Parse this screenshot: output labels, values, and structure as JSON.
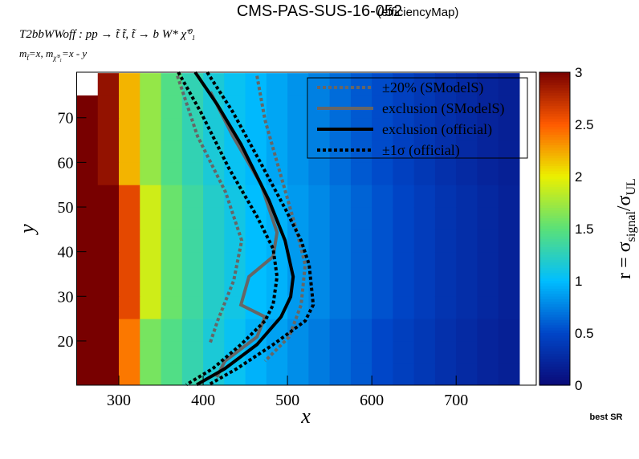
{
  "chart_data": {
    "type": "heatmap",
    "title": "CMS-PAS-SUS-16-052",
    "subtitle": "(efficiencyMap)",
    "process": "T2bbWWoff : pp  → t̃ t̃, t̃  → b W* χ̃⁰₁",
    "masses": [
      "m",
      "t̃",
      "=x, m",
      "χ̃⁰₁",
      "=x - y"
    ],
    "xlabel": "x",
    "ylabel": "y",
    "zlabel": [
      "r = σ",
      "signal",
      "/σ",
      "UL"
    ],
    "footnote": "best SR",
    "xlim": [
      250,
      795
    ],
    "ylim": [
      10.1,
      80.2
    ],
    "zlim": [
      0,
      3
    ],
    "xticks": [
      300,
      400,
      500,
      600,
      700
    ],
    "yticks": [
      20,
      30,
      40,
      50,
      60,
      70
    ],
    "zticks": [
      0,
      0.5,
      1,
      1.5,
      2,
      2.5,
      3
    ],
    "x_bins": [
      250,
      275,
      300,
      325,
      350,
      375,
      400,
      425,
      450,
      475,
      500,
      525,
      550,
      575,
      600,
      625,
      650,
      675,
      700,
      725,
      750,
      775
    ],
    "y_bins": [
      10,
      15,
      20,
      25,
      30,
      35,
      40,
      45,
      50,
      55,
      60,
      65,
      70,
      75,
      80
    ],
    "z": [
      [
        3.5,
        3.3,
        2.4,
        1.6,
        1.45,
        1.3,
        1.15,
        1.05,
        0.95,
        0.88,
        0.8,
        0.72,
        0.65,
        0.58,
        0.5,
        0.44,
        0.38,
        0.32,
        0.27,
        0.22,
        0.18
      ],
      [
        3.5,
        3.3,
        2.4,
        1.6,
        1.45,
        1.3,
        1.15,
        1.05,
        0.95,
        0.88,
        0.8,
        0.72,
        0.65,
        0.58,
        0.5,
        0.44,
        0.38,
        0.32,
        0.27,
        0.22,
        0.18
      ],
      [
        3.5,
        3.3,
        2.4,
        1.6,
        1.45,
        1.3,
        1.15,
        1.05,
        0.95,
        0.88,
        0.8,
        0.72,
        0.65,
        0.58,
        0.5,
        0.44,
        0.38,
        0.32,
        0.27,
        0.22,
        0.18
      ],
      [
        3.5,
        3.3,
        2.6,
        1.9,
        1.55,
        1.35,
        1.2,
        1.1,
        1.0,
        0.95,
        0.85,
        0.78,
        0.7,
        0.62,
        0.55,
        0.48,
        0.42,
        0.35,
        0.3,
        0.25,
        0.2
      ],
      [
        3.5,
        3.3,
        2.6,
        1.9,
        1.55,
        1.35,
        1.2,
        1.1,
        1.0,
        0.95,
        0.85,
        0.78,
        0.7,
        0.62,
        0.55,
        0.48,
        0.42,
        0.35,
        0.3,
        0.25,
        0.2
      ],
      [
        3.5,
        3.3,
        2.6,
        1.9,
        1.55,
        1.35,
        1.2,
        1.1,
        1.0,
        0.95,
        0.85,
        0.78,
        0.7,
        0.62,
        0.55,
        0.48,
        0.42,
        0.35,
        0.3,
        0.25,
        0.2
      ],
      [
        3.5,
        3.3,
        2.6,
        1.9,
        1.55,
        1.35,
        1.2,
        1.1,
        1.0,
        0.95,
        0.85,
        0.78,
        0.7,
        0.62,
        0.55,
        0.48,
        0.42,
        0.35,
        0.3,
        0.25,
        0.2
      ],
      [
        3.5,
        3.3,
        2.6,
        1.9,
        1.55,
        1.35,
        1.2,
        1.1,
        1.0,
        0.95,
        0.85,
        0.78,
        0.7,
        0.62,
        0.55,
        0.48,
        0.42,
        0.35,
        0.3,
        0.25,
        0.2
      ],
      [
        3.5,
        3.3,
        2.6,
        1.9,
        1.55,
        1.35,
        1.2,
        1.1,
        1.0,
        0.95,
        0.85,
        0.78,
        0.7,
        0.62,
        0.55,
        0.48,
        0.42,
        0.35,
        0.3,
        0.25,
        0.2
      ],
      [
        3.4,
        2.9,
        2.2,
        1.7,
        1.45,
        1.28,
        1.15,
        1.05,
        0.98,
        0.9,
        0.82,
        0.74,
        0.66,
        0.58,
        0.52,
        0.45,
        0.38,
        0.32,
        0.27,
        0.22,
        0.18
      ],
      [
        3.4,
        2.9,
        2.2,
        1.7,
        1.45,
        1.28,
        1.15,
        1.05,
        0.98,
        0.9,
        0.82,
        0.74,
        0.66,
        0.58,
        0.52,
        0.45,
        0.38,
        0.32,
        0.27,
        0.22,
        0.18
      ],
      [
        3.4,
        2.9,
        2.2,
        1.7,
        1.45,
        1.28,
        1.15,
        1.05,
        0.98,
        0.9,
        0.82,
        0.74,
        0.66,
        0.58,
        0.52,
        0.45,
        0.38,
        0.32,
        0.27,
        0.22,
        0.18
      ],
      [
        3.4,
        2.9,
        2.2,
        1.7,
        1.45,
        1.28,
        1.15,
        1.05,
        0.98,
        0.9,
        0.82,
        0.74,
        0.66,
        0.58,
        0.52,
        0.45,
        0.38,
        0.32,
        0.27,
        0.22,
        0.18
      ],
      [
        null,
        2.9,
        2.2,
        1.7,
        1.45,
        1.28,
        1.15,
        1.05,
        0.98,
        0.9,
        0.82,
        0.74,
        0.66,
        0.58,
        0.52,
        0.45,
        0.38,
        0.32,
        0.27,
        0.22,
        0.18
      ]
    ],
    "series": [
      {
        "name": "±20% (SModelS)",
        "color": "#666666",
        "dash": "dotted",
        "lines": [
          {
            "x": [
              463.8,
              473.3,
              492.4,
              511.4,
              521,
              516.2,
              501.9,
              473.3
            ],
            "y": [
              79.4,
              69.5,
              56.9,
              44.3,
              37.1,
              28.1,
              20.9,
              15.5
            ]
          },
          {
            "x": [
              369.5,
              393.3,
              426.7,
              445.7,
              436.2,
              417.1,
              407.6
            ],
            "y": [
              79.4,
              65.9,
              53.3,
              42.5,
              33.5,
              24.5,
              19.2
            ]
          }
        ]
      },
      {
        "name": "exclusion (SModelS)",
        "color": "#666666",
        "dash": "solid",
        "lines": [
          {
            "x": [
              408.6,
              435.2,
              468.6,
              487.6,
              482.9,
              454.3,
              444.8,
              473.3,
              463.8,
              425.7,
              416.2
            ],
            "y": [
              75.8,
              65.9,
              55.1,
              44.3,
              38.9,
              34.4,
              28.1,
              25.4,
              20.9,
              15.5,
              11.9
            ]
          }
        ]
      },
      {
        "name": "exclusion (official)",
        "color": "#000000",
        "dash": "solid",
        "lines": [
          {
            "x": [
              390.5,
              416.2,
              444.8,
              478.1,
              497.1,
              506.7,
              503.8,
              492.4,
              463.8,
              425.7,
              392.4
            ],
            "y": [
              80.2,
              73.1,
              64.1,
              51.5,
              42.5,
              34.4,
              29.9,
              25.4,
              19.2,
              13.8,
              10.2
            ]
          }
        ]
      },
      {
        "name": "±1σ (official)",
        "color": "#000000",
        "dash": "dotted",
        "lines": [
          {
            "x": [
              404.8,
              435.2,
              463.8,
              497.1,
              516.2,
              525.7,
              530.5,
              521,
              483,
              440,
              406.7
            ],
            "y": [
              80.2,
              71.3,
              61.4,
              49.7,
              42.5,
              37.1,
              28.1,
              24.5,
              19.2,
              13.8,
              10.2
            ]
          },
          {
            "x": [
              370.5,
              397.1,
              430.5,
              463.8,
              482.9,
              487.6,
              482.9,
              473.3,
              444.8,
              411.4,
              380
            ],
            "y": [
              80.2,
              71.3,
              58.7,
              47.9,
              40.7,
              34.4,
              28.1,
              24.5,
              19.2,
              13.8,
              10.2
            ]
          }
        ]
      }
    ]
  }
}
